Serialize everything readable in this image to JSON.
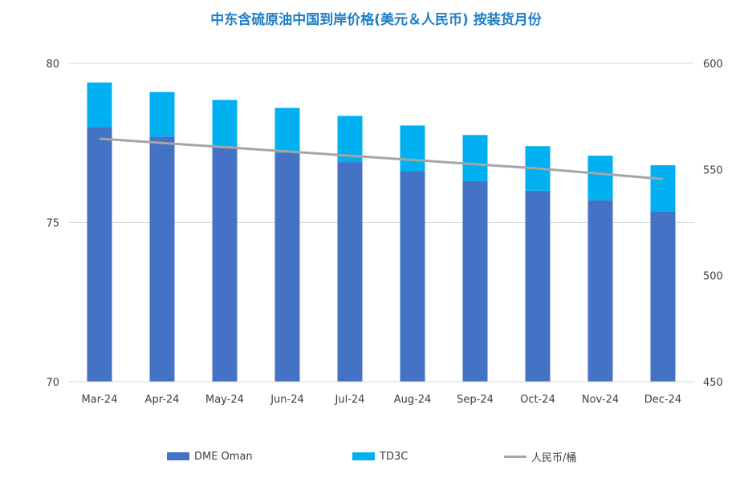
{
  "chart_data": {
    "type": "bar",
    "title": "中东含硫原油中国到岸价格(美元＆人民币) 按装货月份",
    "categories": [
      "Mar-24",
      "Apr-24",
      "May-24",
      "Jun-24",
      "Jul-24",
      "Aug-24",
      "Sep-24",
      "Oct-24",
      "Nov-24",
      "Dec-24"
    ],
    "series": [
      {
        "name": "DME Oman",
        "kind": "stacked-bar",
        "axis": "left",
        "color": "#4472c4",
        "values": [
          78.0,
          77.7,
          77.4,
          77.2,
          76.9,
          76.6,
          76.3,
          76.0,
          75.7,
          75.35
        ]
      },
      {
        "name": "TD3C",
        "kind": "stacked-bar",
        "axis": "left",
        "color": "#00b0f0",
        "values": [
          1.4,
          1.4,
          1.45,
          1.4,
          1.45,
          1.45,
          1.45,
          1.4,
          1.4,
          1.45
        ]
      },
      {
        "name": "人民币/桶",
        "kind": "line",
        "axis": "right",
        "color": "#a5a5a5",
        "values": [
          564.5,
          562.5,
          560.5,
          558.5,
          556.5,
          554.5,
          552.5,
          550.5,
          548.0,
          545.5
        ]
      }
    ],
    "y_left": {
      "min": 70,
      "max": 80,
      "ticks": [
        "70",
        "75",
        "80"
      ]
    },
    "y_right": {
      "min": 450,
      "max": 600,
      "ticks": [
        "450",
        "500",
        "550",
        "600"
      ]
    },
    "grid": "horizontal",
    "legend_position": "bottom"
  }
}
